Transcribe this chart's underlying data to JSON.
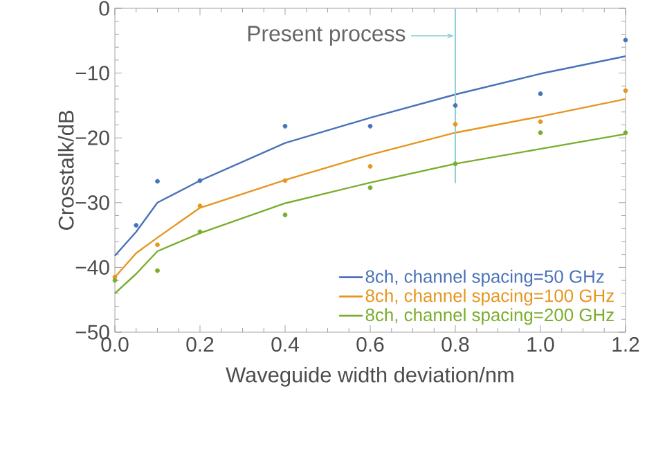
{
  "chart_data": {
    "type": "line",
    "xlabel": "Waveguide width deviation/nm",
    "ylabel": "Crosstalk/dB",
    "xlim": [
      0,
      1.2
    ],
    "ylim": [
      -50,
      0
    ],
    "xticks": [
      {
        "value": 0,
        "label": "0.0"
      },
      {
        "value": 0.2,
        "label": "0.2"
      },
      {
        "value": 0.4,
        "label": "0.4"
      },
      {
        "value": 0.6,
        "label": "0.6"
      },
      {
        "value": 0.8,
        "label": "0.8"
      },
      {
        "value": 1.0,
        "label": "1.0"
      },
      {
        "value": 1.2,
        "label": "1.2"
      }
    ],
    "yticks": [
      {
        "value": -50,
        "label": "−50"
      },
      {
        "value": -40,
        "label": "−40"
      },
      {
        "value": -30,
        "label": "−30"
      },
      {
        "value": -20,
        "label": "−20"
      },
      {
        "value": -10,
        "label": "−10"
      },
      {
        "value": 0,
        "label": "0"
      }
    ],
    "legend": "bottom right",
    "ref_lines": [
      {
        "axis": "x",
        "value": 0.8,
        "label": "Present process",
        "color": "#8ecfd8"
      }
    ],
    "series": [
      {
        "name": "8ch, channel spacing=50 GHz",
        "color": "#4a72b8",
        "marker": "none",
        "x": [
          0,
          0.05,
          0.1,
          0.2,
          0.4,
          0.6,
          0.8,
          1.0,
          1.2
        ],
        "values": [
          -38.2,
          -34.5,
          -30,
          -26.6,
          -20.8,
          -16.9,
          -13.3,
          -10.1,
          -7.4
        ]
      },
      {
        "name": "8ch, channel spacing=100 GHz",
        "color": "#e69520",
        "marker": "none",
        "x": [
          0,
          0.05,
          0.1,
          0.2,
          0.4,
          0.6,
          0.8,
          1.0,
          1.2
        ],
        "values": [
          -41.5,
          -37.8,
          -35.4,
          -30.8,
          -26.5,
          -22.6,
          -19.2,
          -16.7,
          -14.0
        ]
      },
      {
        "name": "8ch, channel spacing=200 GHz",
        "color": "#7aad2c",
        "marker": "none",
        "x": [
          0,
          0.05,
          0.1,
          0.2,
          0.4,
          0.6,
          0.8,
          1.0,
          1.2
        ],
        "values": [
          -44,
          -41,
          -37.5,
          -34.7,
          -30.1,
          -26.9,
          -24.0,
          -21.7,
          -19.4
        ]
      },
      {
        "type": "scatter",
        "color": "#4a72b8",
        "marker": "circle",
        "x": [
          0.05,
          0.1,
          0.2,
          0.4,
          0.6,
          0.8,
          1.0,
          1.2
        ],
        "values": [
          -33.5,
          -26.7,
          -26.6,
          -18.2,
          -18.2,
          -15.0,
          -13.2,
          -4.9
        ]
      },
      {
        "type": "scatter",
        "color": "#e69520",
        "marker": "circle",
        "x": [
          0,
          0.1,
          0.2,
          0.4,
          0.6,
          0.8,
          1.0,
          1.2
        ],
        "values": [
          -41.5,
          -36.5,
          -30.5,
          -26.6,
          -24.4,
          -17.9,
          -17.5,
          -12.7
        ]
      },
      {
        "type": "scatter",
        "color": "#7aad2c",
        "marker": "circle",
        "x": [
          0,
          0.1,
          0.2,
          0.4,
          0.6,
          0.8,
          1.0,
          1.2
        ],
        "values": [
          -42,
          -40.5,
          -34.5,
          -31.9,
          -27.7,
          -24.0,
          -19.2,
          -19.2
        ]
      }
    ]
  }
}
